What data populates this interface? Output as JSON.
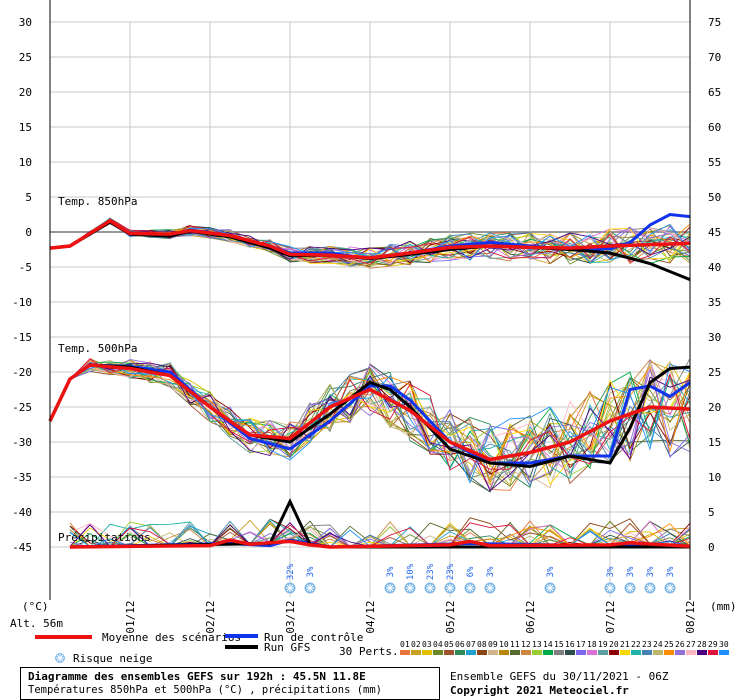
{
  "chart_data": {
    "type": "line",
    "title": "Diagramme des ensembles GEFS sur 192h : 45.5N 11.8E",
    "subtitle": "Températures 850hPa et 500hPa (°C) , précipitations (mm)",
    "x_ticks": [
      "01/12",
      "02/12",
      "03/12",
      "04/12",
      "05/12",
      "06/12",
      "07/12",
      "08/12"
    ],
    "x_range_hours": [
      0,
      192
    ],
    "left_axis": {
      "unit": "(°C)",
      "range": [
        -45,
        30
      ],
      "ticks": [
        30,
        25,
        20,
        15,
        10,
        5,
        0,
        -5,
        -10,
        -15,
        -20,
        -25,
        -30,
        -35,
        -40,
        -45
      ]
    },
    "right_axis": {
      "unit": "(mm)",
      "range": [
        0,
        75
      ],
      "ticks": [
        75,
        70,
        65,
        60,
        55,
        50,
        45,
        40,
        35,
        30,
        25,
        20,
        15,
        10,
        5,
        0
      ]
    },
    "panel_labels": {
      "t850": "Temp. 850hPa",
      "t500": "Temp. 500hPa",
      "precip": "Précipitations"
    },
    "altitude": "Alt. 56m",
    "series": [
      {
        "name": "Moyenne des scénarios",
        "color": "#ee1111",
        "t850": [
          [
            0,
            -2.3
          ],
          [
            6,
            -2
          ],
          [
            18,
            1.6
          ],
          [
            24,
            -0.2
          ],
          [
            36,
            -0.3
          ],
          [
            42,
            0.2
          ],
          [
            54,
            -0.5
          ],
          [
            66,
            -2
          ],
          [
            72,
            -3.2
          ],
          [
            84,
            -3.3
          ],
          [
            96,
            -3.7
          ],
          [
            108,
            -3
          ],
          [
            120,
            -2.2
          ],
          [
            132,
            -2
          ],
          [
            144,
            -2.2
          ],
          [
            156,
            -2.3
          ],
          [
            168,
            -2
          ],
          [
            180,
            -1.8
          ],
          [
            192,
            -1.6
          ]
        ],
        "t500": [
          [
            0,
            -27
          ],
          [
            6,
            -21
          ],
          [
            12,
            -19
          ],
          [
            24,
            -19.5
          ],
          [
            36,
            -20.5
          ],
          [
            48,
            -25
          ],
          [
            60,
            -29
          ],
          [
            72,
            -29.5
          ],
          [
            84,
            -25
          ],
          [
            96,
            -22.5
          ],
          [
            108,
            -25.5
          ],
          [
            120,
            -30
          ],
          [
            132,
            -32.5
          ],
          [
            144,
            -31.5
          ],
          [
            156,
            -30
          ],
          [
            168,
            -27
          ],
          [
            180,
            -25
          ],
          [
            192,
            -25.3
          ]
        ],
        "precip": [
          [
            6,
            0
          ],
          [
            48,
            0.2
          ],
          [
            54,
            1
          ],
          [
            60,
            0.4
          ],
          [
            72,
            0.8
          ],
          [
            78,
            0.3
          ],
          [
            84,
            0
          ],
          [
            120,
            0.3
          ],
          [
            126,
            0.8
          ],
          [
            132,
            0.2
          ],
          [
            168,
            0.3
          ],
          [
            174,
            0.6
          ],
          [
            192,
            0.1
          ]
        ]
      },
      {
        "name": "Run de contrôle",
        "color": "#1133ee",
        "t850": [
          [
            0,
            -2.3
          ],
          [
            6,
            -2
          ],
          [
            18,
            1.5
          ],
          [
            24,
            -0.3
          ],
          [
            36,
            -0.5
          ],
          [
            42,
            0.3
          ],
          [
            54,
            -0.5
          ],
          [
            66,
            -2
          ],
          [
            72,
            -3
          ],
          [
            84,
            -3
          ],
          [
            96,
            -3.8
          ],
          [
            108,
            -3
          ],
          [
            120,
            -2
          ],
          [
            132,
            -1.5
          ],
          [
            144,
            -2
          ],
          [
            156,
            -2.5
          ],
          [
            168,
            -2.4
          ],
          [
            174,
            -1.5
          ],
          [
            180,
            1
          ],
          [
            186,
            2.5
          ],
          [
            192,
            2.2
          ]
        ],
        "t500": [
          [
            0,
            -27
          ],
          [
            6,
            -21
          ],
          [
            12,
            -19
          ],
          [
            24,
            -19.2
          ],
          [
            36,
            -20
          ],
          [
            48,
            -25
          ],
          [
            60,
            -29.5
          ],
          [
            72,
            -31
          ],
          [
            84,
            -27
          ],
          [
            96,
            -22
          ],
          [
            102,
            -22
          ],
          [
            108,
            -24
          ],
          [
            120,
            -30
          ],
          [
            132,
            -33
          ],
          [
            144,
            -33
          ],
          [
            156,
            -32
          ],
          [
            168,
            -32
          ],
          [
            174,
            -22.5
          ],
          [
            180,
            -22
          ],
          [
            186,
            -23.5
          ],
          [
            192,
            -21.5
          ]
        ],
        "precip": [
          [
            6,
            0
          ],
          [
            54,
            0.5
          ],
          [
            66,
            0.2
          ],
          [
            72,
            1
          ],
          [
            84,
            0
          ],
          [
            126,
            0.5
          ],
          [
            192,
            0
          ]
        ]
      },
      {
        "name": "Run GFS",
        "color": "#000000",
        "t850": [
          [
            0,
            -2.3
          ],
          [
            6,
            -2
          ],
          [
            18,
            1.4
          ],
          [
            24,
            -0.3
          ],
          [
            36,
            -0.6
          ],
          [
            42,
            0.1
          ],
          [
            54,
            -0.7
          ],
          [
            66,
            -2.3
          ],
          [
            72,
            -3.4
          ],
          [
            84,
            -3.3
          ],
          [
            96,
            -3.8
          ],
          [
            108,
            -3.2
          ],
          [
            120,
            -2.5
          ],
          [
            132,
            -2
          ],
          [
            144,
            -2.2
          ],
          [
            156,
            -2.5
          ],
          [
            168,
            -3
          ],
          [
            180,
            -4.5
          ],
          [
            192,
            -6.8
          ]
        ],
        "t500": [
          [
            0,
            -27
          ],
          [
            6,
            -21
          ],
          [
            12,
            -19
          ],
          [
            24,
            -19.3
          ],
          [
            36,
            -20.5
          ],
          [
            48,
            -25
          ],
          [
            60,
            -29
          ],
          [
            72,
            -30
          ],
          [
            84,
            -26
          ],
          [
            96,
            -21.5
          ],
          [
            102,
            -22.5
          ],
          [
            108,
            -25
          ],
          [
            120,
            -31
          ],
          [
            132,
            -33
          ],
          [
            144,
            -33.5
          ],
          [
            156,
            -32
          ],
          [
            168,
            -33
          ],
          [
            174,
            -28
          ],
          [
            180,
            -21.5
          ],
          [
            186,
            -19.5
          ],
          [
            192,
            -19.3
          ]
        ],
        "precip": [
          [
            6,
            0
          ],
          [
            66,
            0.5
          ],
          [
            72,
            6.5
          ],
          [
            78,
            0.4
          ],
          [
            84,
            0
          ],
          [
            192,
            0
          ]
        ]
      }
    ],
    "snow_risk": [
      {
        "h": 72,
        "pct": "32%"
      },
      {
        "h": 78,
        "pct": "3%"
      },
      {
        "h": 102,
        "pct": "3%"
      },
      {
        "h": 108,
        "pct": "10%"
      },
      {
        "h": 114,
        "pct": "23%"
      },
      {
        "h": 120,
        "pct": "23%"
      },
      {
        "h": 126,
        "pct": "6%"
      },
      {
        "h": 132,
        "pct": "3%"
      },
      {
        "h": 150,
        "pct": "3%"
      },
      {
        "h": 168,
        "pct": "3%"
      },
      {
        "h": 174,
        "pct": "3%"
      },
      {
        "h": 180,
        "pct": "3%"
      },
      {
        "h": 186,
        "pct": "3%"
      }
    ],
    "perturbations": {
      "label": "30 Perts.",
      "ids": [
        "01",
        "02",
        "03",
        "04",
        "05",
        "06",
        "07",
        "08",
        "09",
        "10",
        "11",
        "12",
        "13",
        "14",
        "15",
        "16",
        "17",
        "18",
        "19",
        "20",
        "21",
        "22",
        "23",
        "24",
        "25",
        "26",
        "27",
        "28",
        "29",
        "30"
      ],
      "colors": [
        "#e8743b",
        "#c8a020",
        "#e0c000",
        "#6a8a2a",
        "#a0522d",
        "#2e8b57",
        "#20a0d0",
        "#8b4513",
        "#d2b48c",
        "#b8860b",
        "#556b2f",
        "#cd853f",
        "#9acd32",
        "#00aa44",
        "#808080",
        "#2f4f4f",
        "#7b68ee",
        "#da70d6",
        "#5f9ea0",
        "#8b0000",
        "#ffd700",
        "#20b2aa",
        "#4682b4",
        "#bdb76b",
        "#ff8c00",
        "#9370db",
        "#ffb6c1",
        "#4b0082",
        "#dc143c",
        "#1e90ff"
      ]
    }
  },
  "legend": {
    "mean": "Moyenne des scénarios",
    "control": "Run de contrôle",
    "gfs": "Run GFS",
    "snow": "Risque neige"
  },
  "footer": {
    "title": "Diagramme des ensembles GEFS sur 192h : 45.5N 11.8E",
    "subtitle": "Températures 850hPa et 500hPa (°C) , précipitations (mm)",
    "run": "Ensemble GEFS du 30/11/2021 - 06Z",
    "copyright": "Copyright 2021 Meteociel.fr"
  }
}
